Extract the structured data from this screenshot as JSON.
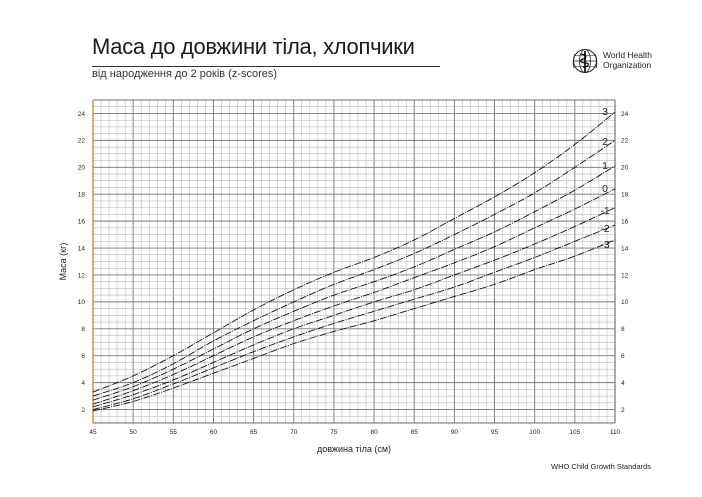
{
  "header": {
    "title": "Маса до довжини тіла, хлопчики",
    "subtitle": "від народження до 2 років (z-scores)"
  },
  "logo": {
    "icon": "who-emblem-icon",
    "name_line1": "World Health",
    "name_line2": "Organization"
  },
  "footer": {
    "source": "WHO Child Growth Standards"
  },
  "colors": {
    "grid": "#9a9a9a",
    "curve": "#111111",
    "axis_left": "#d38b2a"
  },
  "chart_data": {
    "type": "line",
    "title": "Маса до довжини тіла, хлопчики",
    "subtitle": "від народження до 2 років (z-scores)",
    "xlabel": "довжина тіла (см)",
    "ylabel": "Маса (кг)",
    "xlim": [
      45,
      110
    ],
    "ylim": [
      1,
      25
    ],
    "x_ticks": [
      45,
      50,
      55,
      60,
      65,
      70,
      75,
      80,
      85,
      90,
      95,
      100,
      105,
      110
    ],
    "y_ticks": [
      2,
      4,
      6,
      8,
      10,
      12,
      14,
      16,
      18,
      20,
      22,
      24
    ],
    "grid": true,
    "x": [
      45,
      50,
      55,
      60,
      65,
      70,
      75,
      80,
      85,
      90,
      95,
      100,
      105,
      110
    ],
    "series": [
      {
        "name": "3",
        "values": [
          3.3,
          4.5,
          6.0,
          7.7,
          9.4,
          10.9,
          12.2,
          13.3,
          14.6,
          16.2,
          17.8,
          19.6,
          21.7,
          24.1
        ]
      },
      {
        "name": "2",
        "values": [
          3.0,
          4.0,
          5.4,
          7.1,
          8.6,
          10.0,
          11.3,
          12.4,
          13.6,
          15.0,
          16.5,
          18.1,
          20.0,
          22.0
        ]
      },
      {
        "name": "1",
        "values": [
          2.7,
          3.7,
          5.0,
          6.5,
          8.0,
          9.3,
          10.5,
          11.5,
          12.6,
          13.9,
          15.2,
          16.7,
          18.3,
          20.1
        ]
      },
      {
        "name": "0",
        "values": [
          2.4,
          3.4,
          4.6,
          6.0,
          7.4,
          8.6,
          9.7,
          10.7,
          11.8,
          12.9,
          14.1,
          15.5,
          16.9,
          18.4
        ]
      },
      {
        "name": "-1",
        "values": [
          2.2,
          3.1,
          4.2,
          5.5,
          6.8,
          8.0,
          9.0,
          10.0,
          10.9,
          12.0,
          13.1,
          14.3,
          15.6,
          17.0
        ]
      },
      {
        "name": "-2",
        "values": [
          2.0,
          2.8,
          3.9,
          5.1,
          6.3,
          7.4,
          8.4,
          9.3,
          10.2,
          11.1,
          12.2,
          13.3,
          14.5,
          15.7
        ]
      },
      {
        "name": "-3",
        "values": [
          1.9,
          2.6,
          3.6,
          4.7,
          5.8,
          6.9,
          7.8,
          8.6,
          9.5,
          10.4,
          11.3,
          12.4,
          13.4,
          14.6
        ]
      }
    ]
  }
}
